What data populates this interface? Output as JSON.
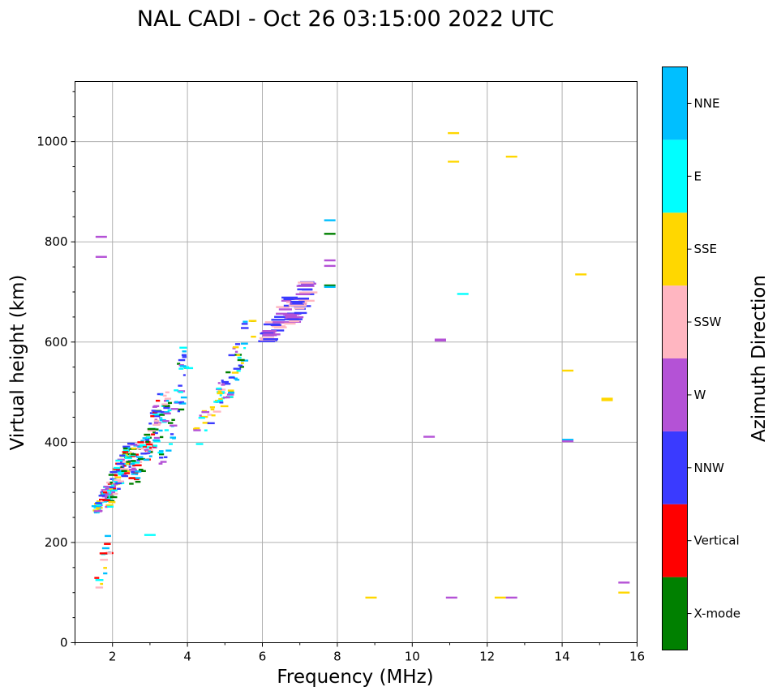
{
  "chart_data": {
    "type": "scatter",
    "title": "NAL CADI - Oct 26 03:15:00 2022 UTC",
    "xlabel": "Frequency (MHz)",
    "ylabel": "Virtual height (km)",
    "xlim": [
      1,
      16
    ],
    "ylim": [
      0,
      1120
    ],
    "xticks": [
      "2",
      "4",
      "6",
      "8",
      "10",
      "12",
      "14",
      "16"
    ],
    "yticks": [
      "0",
      "200",
      "400",
      "600",
      "800",
      "1000"
    ],
    "grid": true,
    "colorbar": {
      "label": "Azimuth Direction",
      "categories": [
        {
          "name": "X-mode",
          "color": "#008000"
        },
        {
          "name": "Vertical",
          "color": "#ff0000"
        },
        {
          "name": "NNW",
          "color": "#3a3aff"
        },
        {
          "name": "W",
          "color": "#b452d6"
        },
        {
          "name": "SSW",
          "color": "#ffb6c1"
        },
        {
          "name": "SSE",
          "color": "#ffd700"
        },
        {
          "name": "E",
          "color": "#00ffff"
        },
        {
          "name": "NNE",
          "color": "#00bfff"
        }
      ]
    },
    "isolated_echoes": [
      {
        "f": 11.1,
        "h": 1017,
        "dir": "SSE"
      },
      {
        "f": 11.1,
        "h": 960,
        "dir": "SSE"
      },
      {
        "f": 12.65,
        "h": 970,
        "dir": "SSE"
      },
      {
        "f": 7.8,
        "h": 843,
        "dir": "NNE"
      },
      {
        "f": 7.8,
        "h": 816,
        "dir": "X-mode"
      },
      {
        "f": 7.8,
        "h": 763,
        "dir": "W"
      },
      {
        "f": 7.8,
        "h": 752,
        "dir": "W"
      },
      {
        "f": 7.8,
        "h": 713,
        "dir": "X-mode"
      },
      {
        "f": 7.8,
        "h": 710,
        "dir": "NNE"
      },
      {
        "f": 11.35,
        "h": 696,
        "dir": "E"
      },
      {
        "f": 14.5,
        "h": 735,
        "dir": "SSE"
      },
      {
        "f": 10.75,
        "h": 605,
        "dir": "W"
      },
      {
        "f": 10.75,
        "h": 603,
        "dir": "W"
      },
      {
        "f": 14.15,
        "h": 543,
        "dir": "SSE"
      },
      {
        "f": 15.2,
        "h": 487,
        "dir": "SSE"
      },
      {
        "f": 15.2,
        "h": 484,
        "dir": "SSE"
      },
      {
        "f": 10.45,
        "h": 411,
        "dir": "W"
      },
      {
        "f": 14.15,
        "h": 405,
        "dir": "NNE"
      },
      {
        "f": 14.15,
        "h": 402,
        "dir": "W"
      },
      {
        "f": 8.9,
        "h": 90,
        "dir": "SSE"
      },
      {
        "f": 11.05,
        "h": 90,
        "dir": "W"
      },
      {
        "f": 12.35,
        "h": 90,
        "dir": "SSE"
      },
      {
        "f": 12.65,
        "h": 90,
        "dir": "W"
      },
      {
        "f": 15.65,
        "h": 120,
        "dir": "W"
      },
      {
        "f": 15.65,
        "h": 100,
        "dir": "SSE"
      },
      {
        "f": 3.0,
        "h": 215,
        "dir": "E"
      },
      {
        "f": 1.7,
        "h": 810,
        "dir": "W"
      },
      {
        "f": 1.7,
        "h": 770,
        "dir": "W"
      }
    ],
    "echo_clusters": [
      {
        "f": [
          1.5,
          2.0
        ],
        "h": [
          255,
          320
        ],
        "n": 50,
        "dirs": [
          "Vertical",
          "NNW",
          "NNE",
          "W",
          "E",
          "SSE"
        ]
      },
      {
        "f": [
          1.75,
          2.6
        ],
        "h": [
          270,
          400
        ],
        "n": 150,
        "dirs": [
          "Vertical",
          "SSE",
          "SSW",
          "NNE",
          "NNW",
          "X-mode",
          "W",
          "E"
        ]
      },
      {
        "f": [
          2.5,
          3.5
        ],
        "h": [
          315,
          500
        ],
        "n": 140,
        "dirs": [
          "X-mode",
          "W",
          "SSW",
          "NNE",
          "E",
          "NNW",
          "Vertical"
        ]
      },
      {
        "f": [
          3.2,
          4.1
        ],
        "h": [
          340,
          600
        ],
        "n": 60,
        "dirs": [
          "X-mode",
          "W",
          "E",
          "NNE",
          "NNW"
        ]
      },
      {
        "f": [
          4.1,
          5.0
        ],
        "h": [
          390,
          520
        ],
        "n": 30,
        "dirs": [
          "E",
          "SSE",
          "NNW",
          "W",
          "SSW"
        ]
      },
      {
        "f": [
          4.8,
          5.8
        ],
        "h": [
          470,
          650
        ],
        "n": 60,
        "dirs": [
          "E",
          "SSE",
          "NNE",
          "NNW",
          "W",
          "X-mode"
        ]
      },
      {
        "f": [
          6.1,
          6.8
        ],
        "h": [
          600,
          690
        ],
        "n": 35,
        "dirs": [
          "NNW",
          "W",
          "SSW"
        ]
      },
      {
        "f": [
          6.7,
          7.3
        ],
        "h": [
          630,
          720
        ],
        "n": 40,
        "dirs": [
          "NNW",
          "W",
          "SSW"
        ]
      },
      {
        "f": [
          1.55,
          2.0
        ],
        "h": [
          95,
          220
        ],
        "n": 18,
        "dirs": [
          "NNE",
          "SSE",
          "E",
          "SSW",
          "Vertical"
        ]
      }
    ],
    "random_seed": 12345
  }
}
